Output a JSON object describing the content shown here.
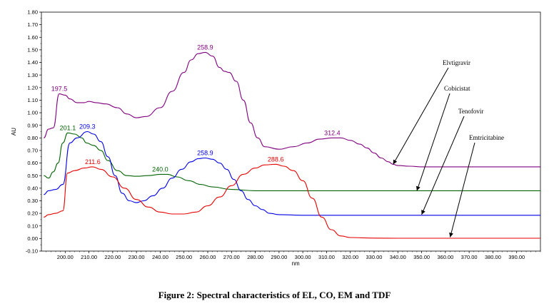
{
  "caption": "Figure 2: Spectral characteristics of EL, CO, EM and TDF",
  "chart_data": {
    "type": "line",
    "xlabel": "nm",
    "ylabel": "AU",
    "xlim": [
      190,
      400
    ],
    "ylim": [
      -0.1,
      1.8
    ],
    "grid": false,
    "x_ticks": [
      "200.00",
      "210.00",
      "220.00",
      "230.00",
      "240.00",
      "250.00",
      "260.00",
      "270.00",
      "280.00",
      "290.00",
      "300.00",
      "310.00",
      "320.00",
      "330.00",
      "340.00",
      "350.00",
      "360.00",
      "370.00",
      "380.00",
      "390.00"
    ],
    "y_ticks": [
      "-0.10",
      "0.00",
      "0.10",
      "0.20",
      "0.30",
      "0.40",
      "0.50",
      "0.60",
      "0.70",
      "0.80",
      "0.90",
      "1.00",
      "1.10",
      "1.20",
      "1.30",
      "1.40",
      "1.50",
      "1.60",
      "1.70",
      "1.80"
    ],
    "series": [
      {
        "name": "Elvtigravir",
        "color": "#800080",
        "x": [
          191,
          193,
          195,
          197.5,
          200,
          202,
          205,
          208,
          210,
          213,
          217,
          222,
          226,
          230,
          234,
          240,
          245,
          250,
          253,
          256,
          258.9,
          262,
          265,
          267,
          269,
          272,
          275,
          278,
          281,
          284,
          290,
          296,
          302,
          307,
          312.4,
          316,
          320,
          324,
          327,
          330,
          333,
          336,
          338,
          340,
          345,
          350,
          360,
          370,
          380,
          390,
          400
        ],
        "y": [
          0.8,
          0.87,
          0.88,
          1.15,
          1.14,
          1.11,
          1.08,
          1.08,
          1.09,
          1.08,
          1.07,
          1.04,
          0.99,
          0.96,
          0.97,
          1.04,
          1.17,
          1.32,
          1.42,
          1.47,
          1.48,
          1.45,
          1.36,
          1.33,
          1.32,
          1.25,
          1.1,
          0.92,
          0.8,
          0.73,
          0.71,
          0.73,
          0.76,
          0.79,
          0.8,
          0.8,
          0.78,
          0.75,
          0.72,
          0.68,
          0.64,
          0.61,
          0.59,
          0.58,
          0.575,
          0.57,
          0.57,
          0.57,
          0.57,
          0.57,
          0.57
        ]
      },
      {
        "name": "Cobicistat",
        "color": "#006400",
        "x": [
          191,
          193,
          195,
          197,
          199,
          201.1,
          204,
          207,
          209,
          212,
          215,
          218,
          222,
          226,
          230,
          235,
          240,
          243,
          247,
          252,
          257,
          262,
          270,
          280,
          290,
          300,
          320,
          340,
          360,
          380,
          400
        ],
        "y": [
          0.5,
          0.48,
          0.53,
          0.6,
          0.76,
          0.84,
          0.83,
          0.8,
          0.76,
          0.74,
          0.7,
          0.62,
          0.54,
          0.5,
          0.495,
          0.5,
          0.51,
          0.51,
          0.49,
          0.46,
          0.43,
          0.41,
          0.39,
          0.38,
          0.38,
          0.38,
          0.38,
          0.38,
          0.38,
          0.38,
          0.38
        ]
      },
      {
        "name": "Tenofovir",
        "color": "#0000e6",
        "x": [
          191,
          193,
          196,
          199,
          202,
          205,
          209.3,
          212,
          215,
          218,
          221,
          224,
          227,
          230,
          233,
          237,
          241,
          245,
          249,
          253,
          256,
          258.9,
          262,
          265,
          268,
          271,
          274,
          277,
          280,
          283,
          286,
          290,
          300,
          320,
          340,
          360,
          380,
          400
        ],
        "y": [
          0.35,
          0.38,
          0.39,
          0.43,
          0.76,
          0.8,
          0.85,
          0.83,
          0.77,
          0.65,
          0.5,
          0.36,
          0.3,
          0.285,
          0.3,
          0.34,
          0.4,
          0.48,
          0.55,
          0.61,
          0.635,
          0.64,
          0.63,
          0.6,
          0.55,
          0.47,
          0.38,
          0.31,
          0.26,
          0.23,
          0.2,
          0.19,
          0.185,
          0.185,
          0.185,
          0.185,
          0.185,
          0.185
        ]
      },
      {
        "name": "Emtricitabine",
        "color": "#e60000",
        "x": [
          191,
          193,
          196,
          199,
          201,
          204,
          208,
          211.6,
          215,
          220,
          225,
          230,
          235,
          240,
          245,
          250,
          255,
          260,
          265,
          270,
          275,
          280,
          284,
          288.6,
          292,
          296,
          300,
          304,
          308,
          312,
          316,
          320,
          330,
          340,
          360,
          380,
          400
        ],
        "y": [
          0.17,
          0.19,
          0.2,
          0.22,
          0.52,
          0.54,
          0.56,
          0.57,
          0.55,
          0.49,
          0.4,
          0.31,
          0.25,
          0.21,
          0.195,
          0.195,
          0.21,
          0.26,
          0.33,
          0.42,
          0.51,
          0.56,
          0.585,
          0.59,
          0.575,
          0.54,
          0.46,
          0.32,
          0.17,
          0.07,
          0.02,
          0.008,
          0.003,
          0.002,
          0.002,
          0.002,
          0.002
        ]
      }
    ],
    "annotations": [
      {
        "text": "197.5",
        "x": 197.5,
        "y": 1.15,
        "color": "#800080"
      },
      {
        "text": "258.9",
        "x": 258.9,
        "y": 1.48,
        "color": "#800080"
      },
      {
        "text": "312.4",
        "x": 312.4,
        "y": 0.8,
        "color": "#800080"
      },
      {
        "text": "201.1",
        "x": 201.1,
        "y": 0.84,
        "color": "#006400"
      },
      {
        "text": "209.3",
        "x": 209.3,
        "y": 0.85,
        "color": "#0000e6"
      },
      {
        "text": "240.0",
        "x": 240.0,
        "y": 0.51,
        "color": "#006400"
      },
      {
        "text": "258.9",
        "x": 258.9,
        "y": 0.64,
        "color": "#0000e6"
      },
      {
        "text": "211.6",
        "x": 211.6,
        "y": 0.57,
        "color": "#e60000"
      },
      {
        "text": "288.6",
        "x": 288.6,
        "y": 0.59,
        "color": "#e60000"
      }
    ],
    "legend_labels": [
      {
        "text": "Elvtigravir",
        "arrow_target_x": 338,
        "arrow_target_y": 0.59
      },
      {
        "text": "Cobicistat",
        "arrow_target_x": 348,
        "arrow_target_y": 0.38
      },
      {
        "text": "Tenofovir",
        "arrow_target_x": 350,
        "arrow_target_y": 0.19
      },
      {
        "text": "Emtricitabine",
        "arrow_target_x": 362,
        "arrow_target_y": 0.01
      }
    ]
  }
}
